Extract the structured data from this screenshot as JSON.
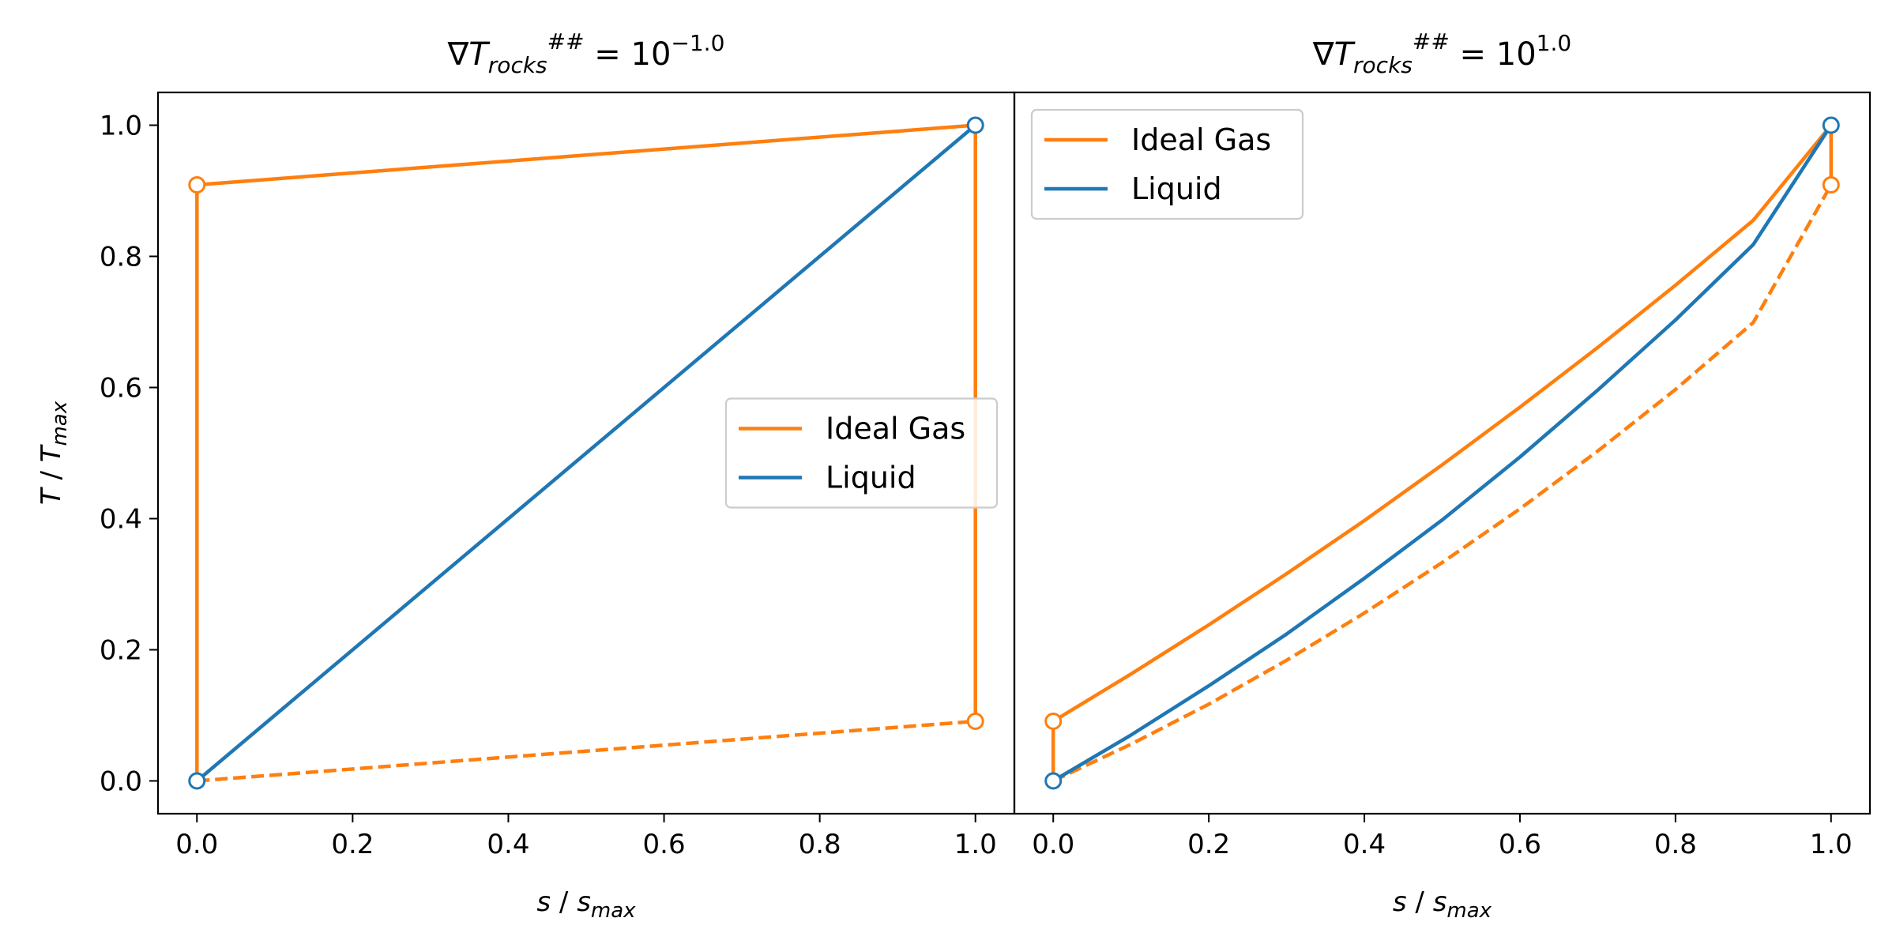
{
  "chart_data": [
    {
      "type": "line",
      "title": "∇T_rocks^## = 10^-1.0",
      "title_parts": {
        "base": "∇",
        "var": "T",
        "sub": "rocks",
        "sup": "##",
        "eq": " = 10",
        "exp": "−1.0"
      },
      "xlabel": "s / s_max",
      "xlabel_parts": {
        "var": "s",
        "sep": " / ",
        "var2": "s",
        "sub": "max"
      },
      "ylabel": "T / T_max",
      "ylabel_parts": {
        "var": "T",
        "sep": " / ",
        "var2": "T",
        "sub": "max"
      },
      "xlim": [
        -0.05,
        1.05
      ],
      "ylim": [
        -0.05,
        1.05
      ],
      "xticks": [
        "0.0",
        "0.2",
        "0.4",
        "0.6",
        "0.8",
        "1.0"
      ],
      "yticks": [
        "0.0",
        "0.2",
        "0.4",
        "0.6",
        "0.8",
        "1.0"
      ],
      "legend": {
        "placement": "center-right",
        "entries": [
          {
            "name": "Ideal Gas",
            "color": "#ff7f0e"
          },
          {
            "name": "Liquid",
            "color": "#1f77b4"
          }
        ]
      },
      "series": [
        {
          "name": "Ideal Gas",
          "color": "#ff7f0e",
          "style": "solid",
          "x": [
            0,
            0,
            1,
            1
          ],
          "y": [
            0,
            0.909,
            1.0,
            0.091
          ]
        },
        {
          "name": "",
          "color": "#ff7f0e",
          "style": "dashed",
          "x": [
            0,
            1
          ],
          "y": [
            0,
            0.091
          ]
        },
        {
          "name": "Liquid",
          "color": "#1f77b4",
          "style": "solid",
          "x": [
            0,
            1
          ],
          "y": [
            0,
            1.0
          ]
        }
      ],
      "markers": [
        {
          "x": 0,
          "y": 0.909,
          "color": "#ff7f0e"
        },
        {
          "x": 1,
          "y": 0.091,
          "color": "#ff7f0e"
        },
        {
          "x": 0,
          "y": 0,
          "color": "#1f77b4"
        },
        {
          "x": 1,
          "y": 1.0,
          "color": "#1f77b4"
        }
      ]
    },
    {
      "type": "line",
      "title": "∇T_rocks^## = 10^1.0",
      "title_parts": {
        "base": "∇",
        "var": "T",
        "sub": "rocks",
        "sup": "##",
        "eq": " = 10",
        "exp": "1.0"
      },
      "xlabel": "s / s_max",
      "xlabel_parts": {
        "var": "s",
        "sep": " / ",
        "var2": "s",
        "sub": "max"
      },
      "xlim": [
        -0.05,
        1.05
      ],
      "ylim": [
        -0.05,
        1.05
      ],
      "xticks": [
        "0.0",
        "0.2",
        "0.4",
        "0.6",
        "0.8",
        "1.0"
      ],
      "legend": {
        "placement": "top-left",
        "entries": [
          {
            "name": "Ideal Gas",
            "color": "#ff7f0e"
          },
          {
            "name": "Liquid",
            "color": "#1f77b4"
          }
        ]
      },
      "series": [
        {
          "name": "Ideal Gas",
          "color": "#ff7f0e",
          "style": "solid",
          "x": [
            0,
            0,
            0.1,
            0.2,
            0.3,
            0.4,
            0.5,
            0.6,
            0.7,
            0.8,
            0.9,
            1.0,
            1.0
          ],
          "y": [
            0,
            0.091,
            0.163,
            0.238,
            0.316,
            0.397,
            0.482,
            0.57,
            0.661,
            0.756,
            0.855,
            1.0,
            0.909
          ]
        },
        {
          "name": "",
          "color": "#ff7f0e",
          "style": "dashed",
          "x": [
            0,
            0.1,
            0.2,
            0.3,
            0.4,
            0.5,
            0.6,
            0.7,
            0.8,
            0.9,
            1.0
          ],
          "y": [
            0,
            0.056,
            0.117,
            0.184,
            0.256,
            0.333,
            0.415,
            0.503,
            0.597,
            0.699,
            0.909
          ]
        },
        {
          "name": "Liquid",
          "color": "#1f77b4",
          "style": "solid",
          "x": [
            0,
            0.1,
            0.2,
            0.3,
            0.4,
            0.5,
            0.6,
            0.7,
            0.8,
            0.9,
            1.0
          ],
          "y": [
            0,
            0.07,
            0.145,
            0.224,
            0.309,
            0.398,
            0.494,
            0.596,
            0.703,
            0.818,
            1.0
          ]
        }
      ],
      "markers": [
        {
          "x": 0,
          "y": 0.091,
          "color": "#ff7f0e"
        },
        {
          "x": 1,
          "y": 0.909,
          "color": "#ff7f0e"
        },
        {
          "x": 0,
          "y": 0,
          "color": "#1f77b4"
        },
        {
          "x": 1,
          "y": 1.0,
          "color": "#1f77b4"
        }
      ]
    }
  ]
}
